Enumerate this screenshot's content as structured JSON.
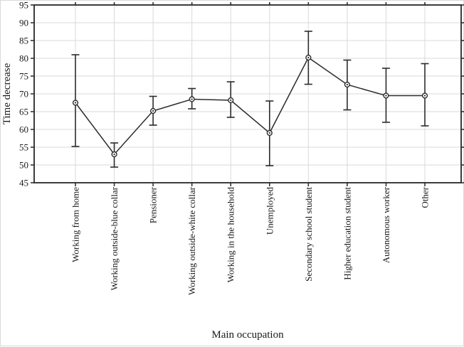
{
  "chart_data": {
    "type": "line",
    "title": "",
    "xlabel": "Main occupation",
    "ylabel": "Time decrease",
    "ylim": [
      45,
      95
    ],
    "yticks": [
      45,
      50,
      55,
      60,
      65,
      70,
      75,
      80,
      85,
      90,
      95
    ],
    "grid": true,
    "legend": "none",
    "marker": "open-circle-with-center-dot",
    "error_bars": true,
    "categories": [
      "Working from home",
      "Working outside-blue collar",
      "Pensioner",
      "Working outside-white collar",
      "Working in the household",
      "Unemployed",
      "Secondary school student",
      "Higher education student",
      "Autonomous worker",
      "Other"
    ],
    "values": [
      67.5,
      53.0,
      65.2,
      68.5,
      68.2,
      59.0,
      80.2,
      72.6,
      69.5,
      69.5
    ],
    "error_low": [
      55.2,
      49.4,
      61.2,
      65.8,
      63.4,
      49.8,
      72.7,
      65.5,
      62.0,
      61.0
    ],
    "error_high": [
      81.0,
      56.2,
      69.3,
      71.5,
      73.4,
      68.0,
      87.6,
      79.5,
      77.2,
      78.5
    ]
  },
  "style": {
    "axis_color": "#262626",
    "grid_color": "#d9d9d9",
    "line_color": "#2b2b2b",
    "marker_fill": "#ffffff",
    "background": "#ffffff"
  }
}
